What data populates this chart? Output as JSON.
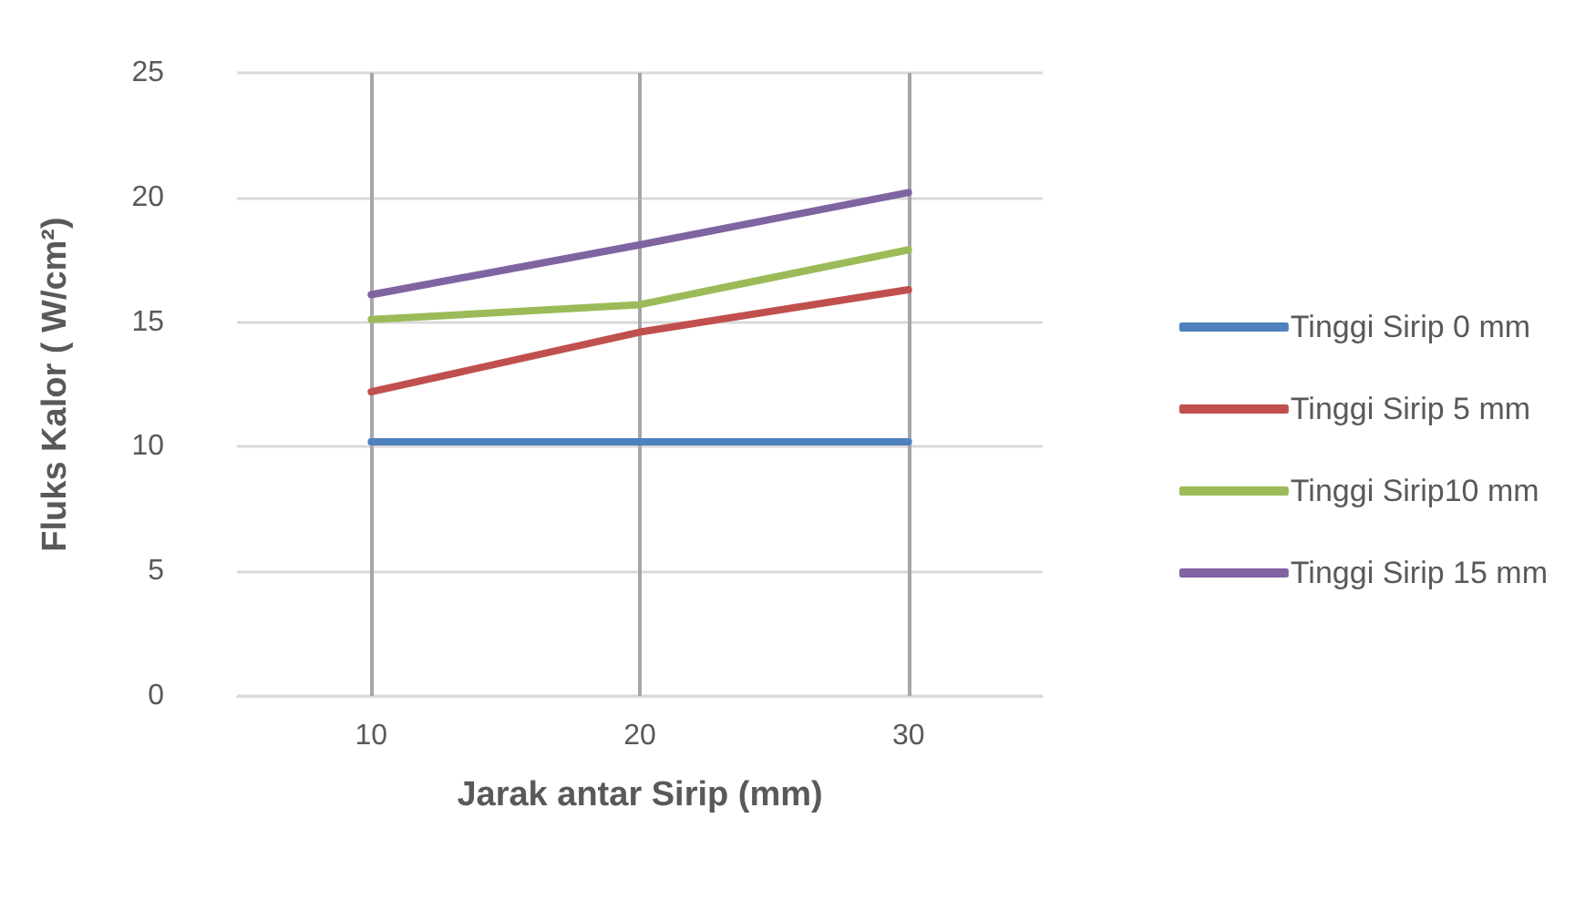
{
  "chart_data": {
    "type": "line",
    "xlabel": "Jarak antar Sirip (mm)",
    "ylabel": "Fluks Kalor ( W/cm²)",
    "x": [
      10,
      20,
      30
    ],
    "xlim": [
      5,
      35
    ],
    "xticks": [
      10,
      20,
      30
    ],
    "ylim": [
      0,
      25
    ],
    "yticks": [
      0,
      5,
      10,
      15,
      20,
      25
    ],
    "grid": true,
    "legend": "right",
    "marker": "none",
    "line_style": "solid",
    "series": [
      {
        "name": "Tinggi Sirip 0 mm",
        "color": "#4f81bd",
        "values": [
          10.2,
          10.2,
          10.2
        ]
      },
      {
        "name": "Tinggi Sirip 5 mm",
        "color": "#c0504d",
        "values": [
          12.2,
          14.6,
          16.3
        ]
      },
      {
        "name": "Tinggi Sirip10 mm",
        "color": "#9bbb59",
        "values": [
          15.1,
          15.7,
          17.9
        ]
      },
      {
        "name": "Tinggi Sirip 15 mm",
        "color": "#8064a2",
        "values": [
          16.1,
          18.1,
          20.2
        ]
      }
    ]
  }
}
